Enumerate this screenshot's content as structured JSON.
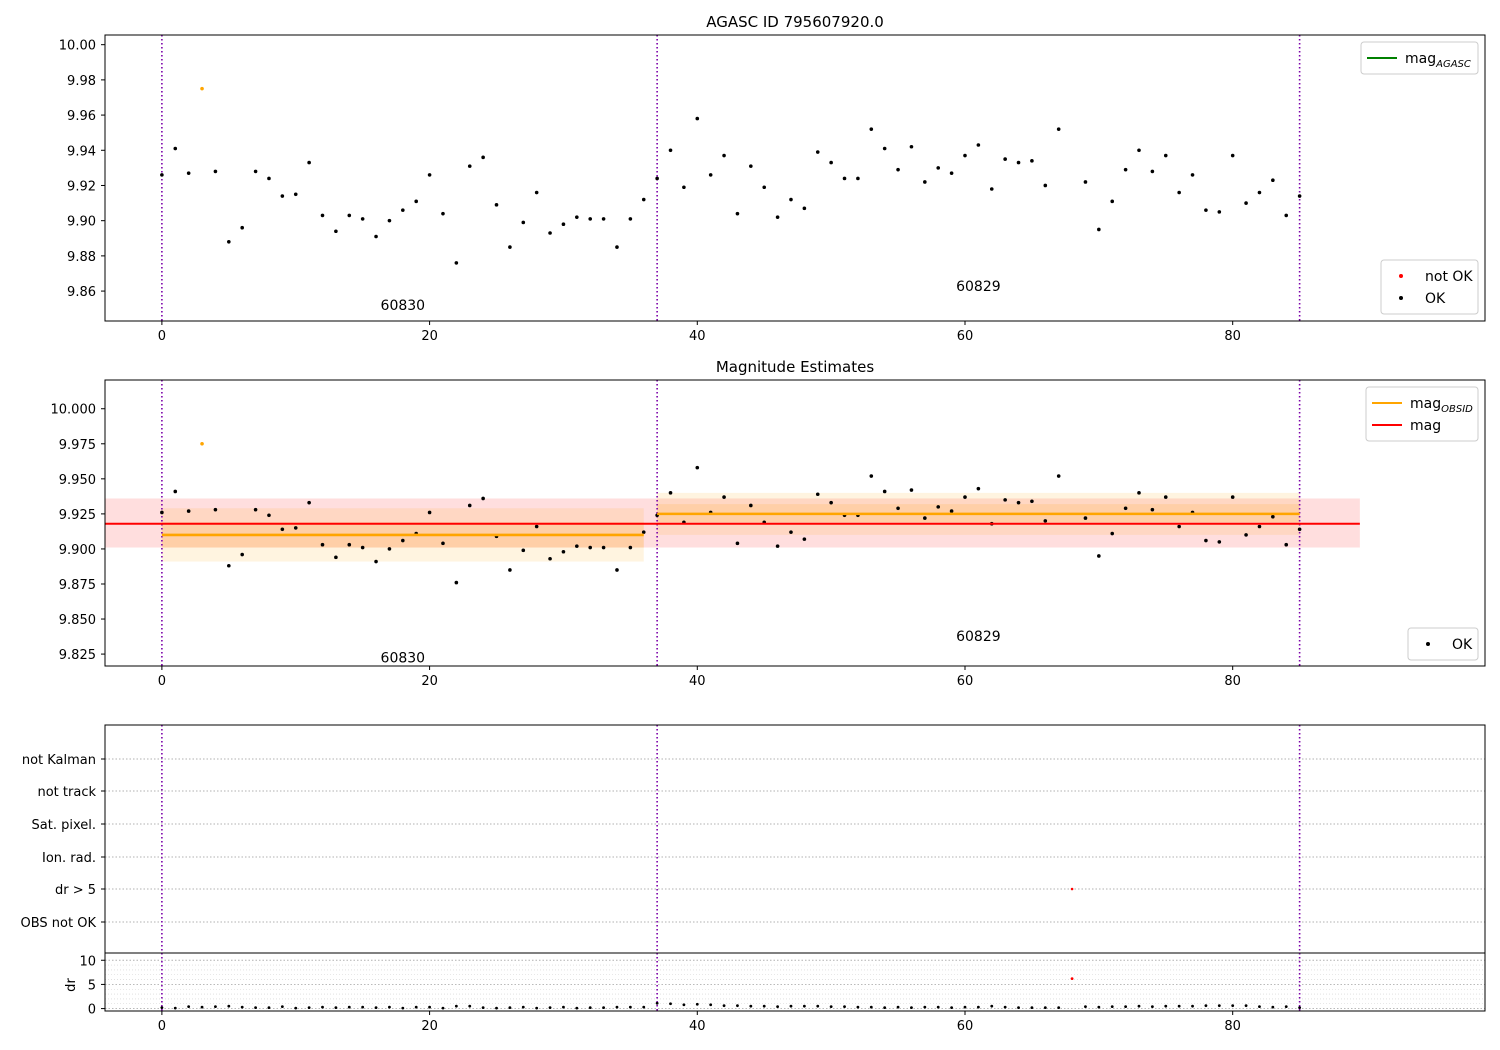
{
  "chart_data": [
    {
      "type": "scatter",
      "title": "AGASC ID 795607920.0",
      "ylim": [
        9.843,
        10.0055
      ],
      "xlim": [
        -4.25,
        98.85
      ],
      "xticks": [
        0,
        20,
        40,
        60,
        80
      ],
      "yticks": [
        9.86,
        9.88,
        9.9,
        9.92,
        9.94,
        9.96,
        9.98,
        10.0
      ],
      "ytick_labels": [
        "9.86",
        "9.88",
        "9.90",
        "9.92",
        "9.94",
        "9.96",
        "9.98",
        "10.00"
      ],
      "obsid_boundaries": [
        0,
        37,
        85
      ],
      "obsid_labels": [
        {
          "text": "60830",
          "x": 18,
          "y": 9.852
        },
        {
          "text": "60829",
          "x": 61,
          "y": 9.863
        }
      ],
      "series": [
        {
          "name": "OK",
          "color": "#000000",
          "points": [
            [
              0,
              9.926
            ],
            [
              1,
              9.941
            ],
            [
              2,
              9.927
            ],
            [
              4,
              9.928
            ],
            [
              5,
              9.888
            ],
            [
              6,
              9.896
            ],
            [
              7,
              9.928
            ],
            [
              8,
              9.924
            ],
            [
              9,
              9.914
            ],
            [
              10,
              9.915
            ],
            [
              11,
              9.933
            ],
            [
              12,
              9.903
            ],
            [
              13,
              9.894
            ],
            [
              14,
              9.903
            ],
            [
              15,
              9.901
            ],
            [
              16,
              9.891
            ],
            [
              17,
              9.9
            ],
            [
              18,
              9.906
            ],
            [
              19,
              9.911
            ],
            [
              20,
              9.926
            ],
            [
              21,
              9.904
            ],
            [
              22,
              9.876
            ],
            [
              23,
              9.931
            ],
            [
              24,
              9.936
            ],
            [
              25,
              9.909
            ],
            [
              26,
              9.885
            ],
            [
              27,
              9.899
            ],
            [
              28,
              9.916
            ],
            [
              29,
              9.893
            ],
            [
              30,
              9.898
            ],
            [
              31,
              9.902
            ],
            [
              32,
              9.901
            ],
            [
              33,
              9.901
            ],
            [
              34,
              9.885
            ],
            [
              35,
              9.901
            ],
            [
              36,
              9.912
            ],
            [
              37,
              9.924
            ],
            [
              38,
              9.94
            ],
            [
              39,
              9.919
            ],
            [
              40,
              9.958
            ],
            [
              41,
              9.926
            ],
            [
              42,
              9.937
            ],
            [
              43,
              9.904
            ],
            [
              44,
              9.931
            ],
            [
              45,
              9.919
            ],
            [
              46,
              9.902
            ],
            [
              47,
              9.912
            ],
            [
              48,
              9.907
            ],
            [
              49,
              9.939
            ],
            [
              50,
              9.933
            ],
            [
              51,
              9.924
            ],
            [
              52,
              9.924
            ],
            [
              53,
              9.952
            ],
            [
              54,
              9.941
            ],
            [
              55,
              9.929
            ],
            [
              56,
              9.942
            ],
            [
              57,
              9.922
            ],
            [
              58,
              9.93
            ],
            [
              59,
              9.927
            ],
            [
              60,
              9.937
            ],
            [
              61,
              9.943
            ],
            [
              62,
              9.918
            ],
            [
              63,
              9.935
            ],
            [
              64,
              9.933
            ],
            [
              65,
              9.934
            ],
            [
              66,
              9.92
            ],
            [
              67,
              9.952
            ],
            [
              69,
              9.922
            ],
            [
              70,
              9.895
            ],
            [
              71,
              9.911
            ],
            [
              72,
              9.929
            ],
            [
              73,
              9.94
            ],
            [
              74,
              9.928
            ],
            [
              75,
              9.937
            ],
            [
              76,
              9.916
            ],
            [
              77,
              9.926
            ],
            [
              78,
              9.906
            ],
            [
              79,
              9.905
            ],
            [
              80,
              9.937
            ],
            [
              81,
              9.91
            ],
            [
              82,
              9.916
            ],
            [
              83,
              9.923
            ],
            [
              84,
              9.903
            ],
            [
              85,
              9.914
            ]
          ]
        },
        {
          "name": "not OK",
          "color": "#ff0000",
          "points": []
        },
        {
          "name": "",
          "color": "#ffa500",
          "points": [
            [
              3,
              9.975
            ]
          ]
        }
      ],
      "legends": [
        {
          "position": "top-right",
          "entries": [
            {
              "label": "mag",
              "sub": "AGASC",
              "kind": "line",
              "color": "#008000"
            }
          ]
        },
        {
          "position": "bottom-right",
          "entries": [
            {
              "label": "not OK",
              "kind": "dot",
              "color": "#ff0000"
            },
            {
              "label": "OK",
              "kind": "dot",
              "color": "#000000"
            }
          ]
        }
      ]
    },
    {
      "type": "scatter",
      "title": "Magnitude Estimates",
      "ylim": [
        9.8165,
        10.0205
      ],
      "xlim": [
        -4.25,
        98.85
      ],
      "xticks": [
        0,
        20,
        40,
        60,
        80
      ],
      "yticks": [
        9.825,
        9.85,
        9.875,
        9.9,
        9.925,
        9.95,
        9.975,
        10.0
      ],
      "ytick_labels": [
        "9.825",
        "9.850",
        "9.875",
        "9.900",
        "9.925",
        "9.950",
        "9.975",
        "10.000"
      ],
      "obsid_boundaries": [
        0,
        37,
        85
      ],
      "obsid_labels": [
        {
          "text": "60830",
          "x": 18,
          "y": 9.8225
        },
        {
          "text": "60829",
          "x": 61,
          "y": 9.838
        }
      ],
      "mag": {
        "value": 9.918,
        "band": [
          9.901,
          9.936
        ],
        "x_range": [
          -4.25,
          89.5
        ],
        "color": "#ff0000"
      },
      "mag_obsid": [
        {
          "x_range": [
            0,
            36
          ],
          "value": 9.91,
          "band": [
            9.891,
            9.929
          ],
          "inner_band": [
            9.901,
            9.919
          ]
        },
        {
          "x_range": [
            37,
            85
          ],
          "value": 9.925,
          "band": [
            9.91,
            9.94
          ],
          "inner_band": [
            9.919,
            9.932
          ]
        }
      ],
      "series_ref": "same OK / orange points as panel 1",
      "legends": [
        {
          "position": "top-right",
          "entries": [
            {
              "label": "mag",
              "sub": "OBSID",
              "kind": "line",
              "color": "#ffa500"
            },
            {
              "label": "mag",
              "kind": "line",
              "color": "#ff0000"
            }
          ]
        },
        {
          "position": "bottom-right",
          "entries": [
            {
              "label": "OK",
              "kind": "dot",
              "color": "#000000"
            }
          ]
        }
      ]
    },
    {
      "type": "scatter",
      "xlim": [
        -4.25,
        98.85
      ],
      "obsid_boundaries": [
        0,
        37,
        85
      ],
      "categories": [
        "not Kalman",
        "not track",
        "Sat. pixel.",
        "Ion. rad.",
        "dr > 5",
        "OBS not OK"
      ],
      "flagged_points": [
        {
          "x": 68,
          "category": "dr > 5",
          "color": "#ff0000"
        }
      ]
    },
    {
      "type": "scatter",
      "ylabel": "dr",
      "ylim": [
        -0.5,
        11.5
      ],
      "xlim": [
        -4.25,
        98.85
      ],
      "xticks": [
        0,
        20,
        40,
        60,
        80
      ],
      "yticks": [
        0,
        5,
        10
      ],
      "obsid_boundaries": [
        0,
        37,
        85
      ],
      "values": [
        0.2,
        0.1,
        0.4,
        0.3,
        0.4,
        0.5,
        0.3,
        0.2,
        0.2,
        0.4,
        0.1,
        0.2,
        0.3,
        0.2,
        0.3,
        0.3,
        0.2,
        0.3,
        0.1,
        0.3,
        0.3,
        0.1,
        0.5,
        0.5,
        0.2,
        0.1,
        0.2,
        0.3,
        0.1,
        0.2,
        0.3,
        0.1,
        0.2,
        0.2,
        0.3,
        0.3,
        0.3,
        1.1,
        1.0,
        0.8,
        0.9,
        0.8,
        0.6,
        0.6,
        0.5,
        0.5,
        0.4,
        0.5,
        0.5,
        0.5,
        0.4,
        0.4,
        0.3,
        0.3,
        0.2,
        0.3,
        0.2,
        0.3,
        0.3,
        0.2,
        0.3,
        0.3,
        0.5,
        0.3,
        0.2,
        0.2,
        0.2,
        0.2,
        6.2,
        0.4,
        0.3,
        0.4,
        0.4,
        0.5,
        0.4,
        0.5,
        0.5,
        0.5,
        0.6,
        0.6,
        0.6,
        0.6,
        0.4,
        0.3,
        0.4,
        0.2
      ],
      "red_points": [
        68
      ]
    }
  ]
}
